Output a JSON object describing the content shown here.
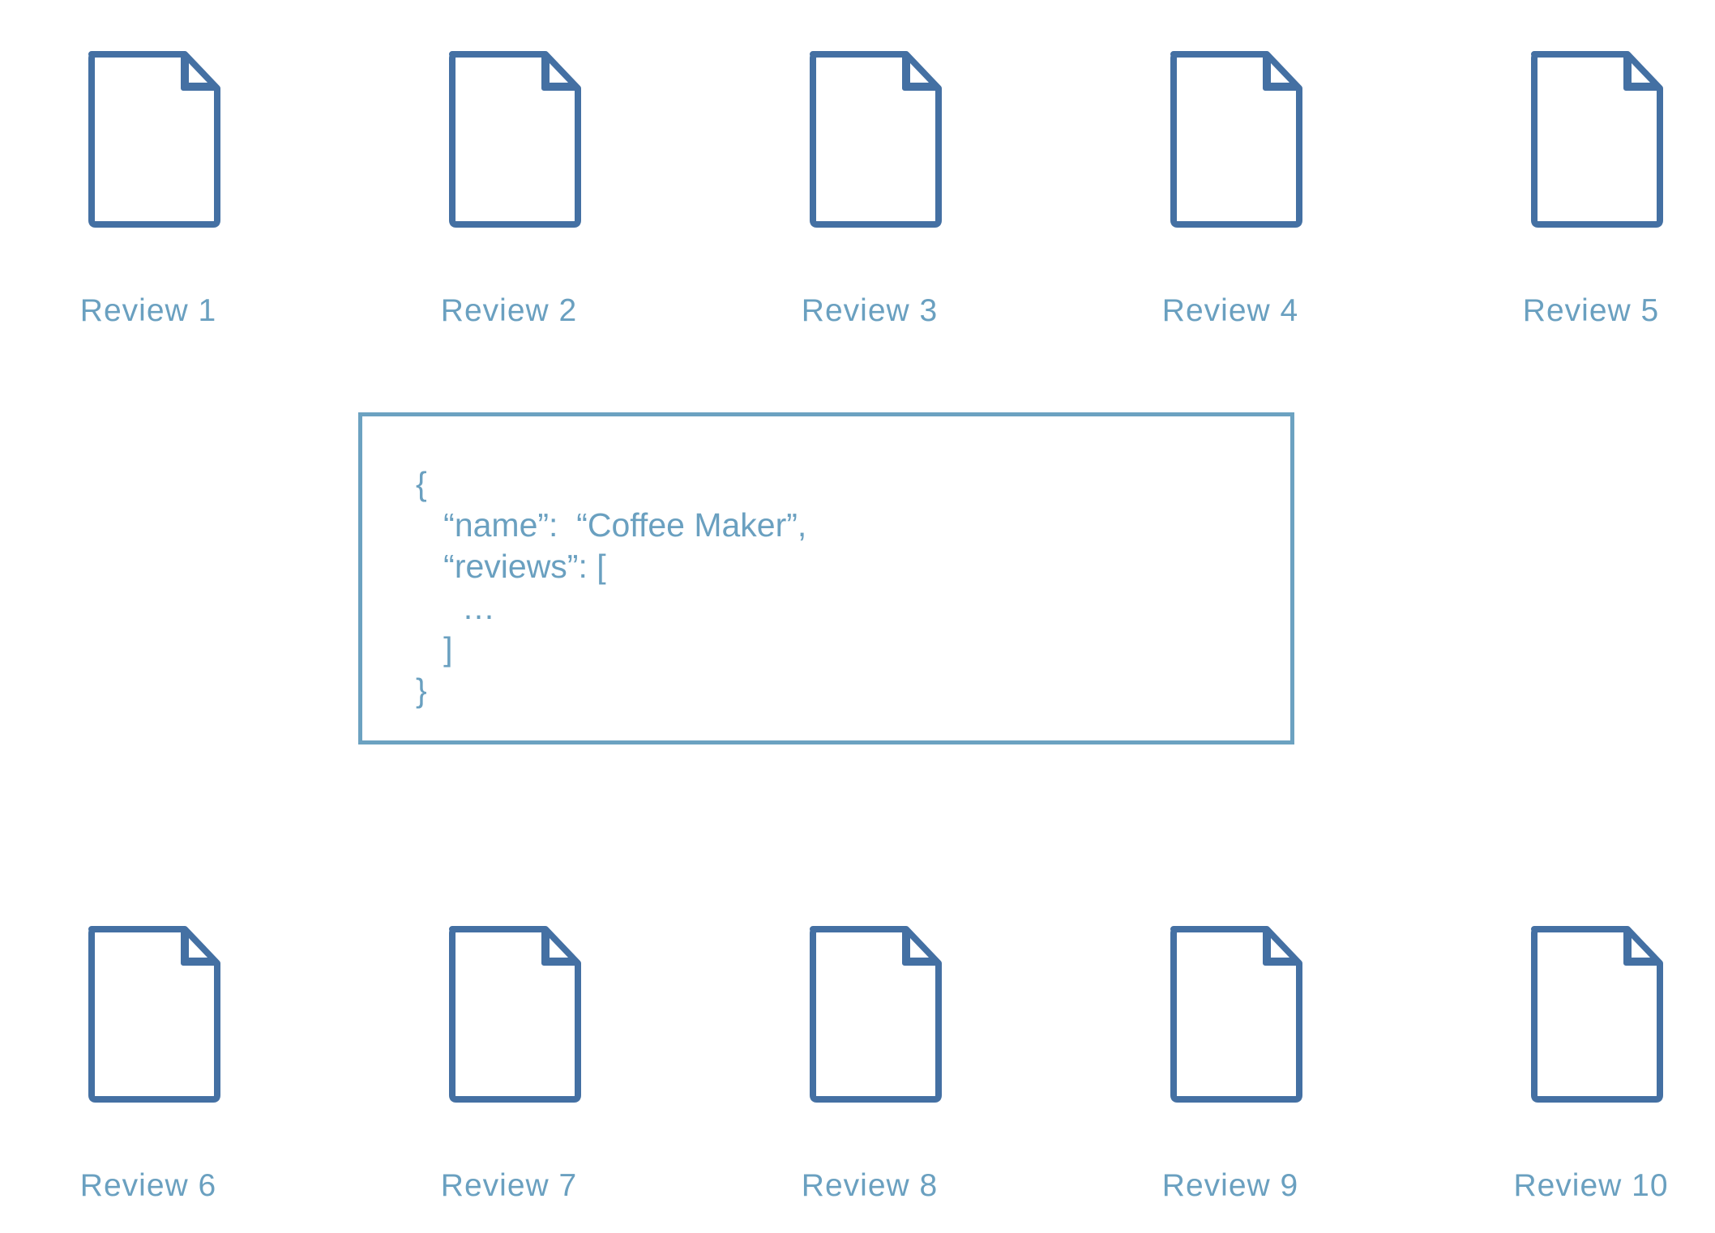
{
  "colors": {
    "icon_stroke": "#4470a3",
    "label_text": "#6aa0c0",
    "box_border": "#6ca2c1",
    "background": "#ffffff"
  },
  "documents": {
    "top_row": [
      {
        "label": "Review 1",
        "icon": "document-icon"
      },
      {
        "label": "Review 2",
        "icon": "document-icon"
      },
      {
        "label": "Review 3",
        "icon": "document-icon"
      },
      {
        "label": "Review 4",
        "icon": "document-icon"
      },
      {
        "label": "Review 5",
        "icon": "document-icon"
      }
    ],
    "bottom_row": [
      {
        "label": "Review 6",
        "icon": "document-icon"
      },
      {
        "label": "Review 7",
        "icon": "document-icon"
      },
      {
        "label": "Review 8",
        "icon": "document-icon"
      },
      {
        "label": "Review 9",
        "icon": "document-icon"
      },
      {
        "label": "Review 10",
        "icon": "document-icon"
      }
    ]
  },
  "json_box": {
    "lines": [
      "{",
      "   “name”:  “Coffee Maker”,",
      "   “reviews”: [",
      "     …",
      "   ]",
      "}"
    ]
  }
}
